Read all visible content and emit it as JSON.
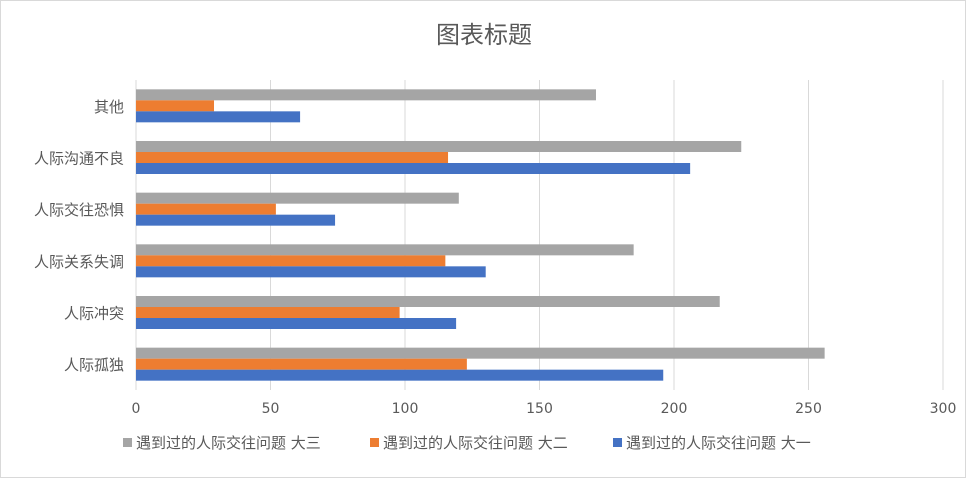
{
  "chart_data": {
    "type": "bar",
    "orientation": "horizontal",
    "title": "图表标题",
    "categories": [
      "人际孤独",
      "人际冲突",
      "人际关系失调",
      "人际交往恐惧",
      "人际沟通不良",
      "其他"
    ],
    "series": [
      {
        "name": "遇到过的人际交往问题 大一",
        "color": "#4472c4",
        "values": [
          196,
          119,
          130,
          74,
          206,
          61
        ]
      },
      {
        "name": "遇到过的人际交往问题 大二",
        "color": "#ed7d31",
        "values": [
          123,
          98,
          115,
          52,
          116,
          29
        ]
      },
      {
        "name": "遇到过的人际交往问题 大三",
        "color": "#a5a5a5",
        "values": [
          256,
          217,
          185,
          120,
          225,
          171
        ]
      }
    ],
    "xlim": [
      0,
      300
    ],
    "xticks": [
      0,
      50,
      100,
      150,
      200,
      250,
      300
    ],
    "grid": true,
    "legend_position": "bottom",
    "legend_order": [
      2,
      1,
      0
    ]
  }
}
